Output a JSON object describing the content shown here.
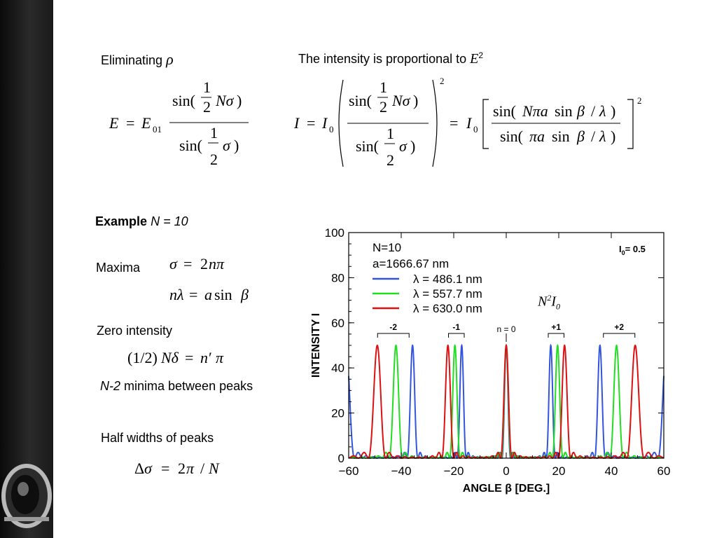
{
  "slide": {
    "eliminating_label": "Eliminating",
    "rho_symbol": "ρ",
    "intensity_text": "The intensity is proportional to",
    "E_symbol": "E",
    "E_exp": "2",
    "example_bold": "Example",
    "example_n": "N = 10",
    "maxima_label": "Maxima",
    "zero_intensity_label": "Zero intensity",
    "minima_prefix": "N-2",
    "minima_text": " minima between peaks",
    "halfwidth_label": "Half widths of peaks",
    "annotation_N2I0_base": "N",
    "annotation_N2I0_exp": "2",
    "annotation_N2I0_I": "I",
    "annotation_N2I0_sub": "0"
  },
  "equations": {
    "eq1": "E = E01 sin(½Nσ)/sin(½σ)",
    "eq2": "I = I0 (sin(½Nσ)/sin(½σ))² = I0 [sin(Nπa sin β/λ)/sin(πa sin β/λ)]²",
    "maxima1": "σ = 2nπ",
    "maxima2": "nλ = a sin β",
    "zero": "(1/2)Nδ = n′π",
    "halfwidth": "Δσ = 2π / N"
  },
  "chart_data": {
    "type": "line",
    "title": "",
    "xlabel": "ANGLE β [DEG.]",
    "ylabel": "INTENSITY I",
    "xlim": [
      -60,
      60
    ],
    "ylim": [
      0,
      100
    ],
    "xticks": [
      "−60",
      "−40",
      "−20",
      "0",
      "20",
      "40",
      "60"
    ],
    "yticks": [
      "0",
      "20",
      "40",
      "60",
      "80",
      "100"
    ],
    "grid": false,
    "legend_position": "top-left",
    "info_lines": [
      "N=10",
      "a=1666.67  nm"
    ],
    "top_right_label": "I",
    "top_right_sub": "0",
    "top_right_value": "= 0.5",
    "N": 10,
    "a_nm": 1666.67,
    "I0": 0.5,
    "series": [
      {
        "name": "λ = 486.1 nm",
        "wavelength_nm": 486.1,
        "color": "#3355dd"
      },
      {
        "name": "λ = 557.7 nm",
        "wavelength_nm": 557.7,
        "color": "#22dd22"
      },
      {
        "name": "λ = 630.0 nm",
        "wavelength_nm": 630.0,
        "color": "#dd1111"
      }
    ],
    "order_labels": [
      {
        "label": "-2",
        "range": [
          -49,
          -37
        ]
      },
      {
        "label": "-1",
        "range": [
          -22,
          -16
        ]
      },
      {
        "label": "n = 0",
        "at": 0
      },
      {
        "label": "+1",
        "range": [
          16,
          22
        ]
      },
      {
        "label": "+2",
        "range": [
          37,
          49
        ]
      }
    ]
  }
}
